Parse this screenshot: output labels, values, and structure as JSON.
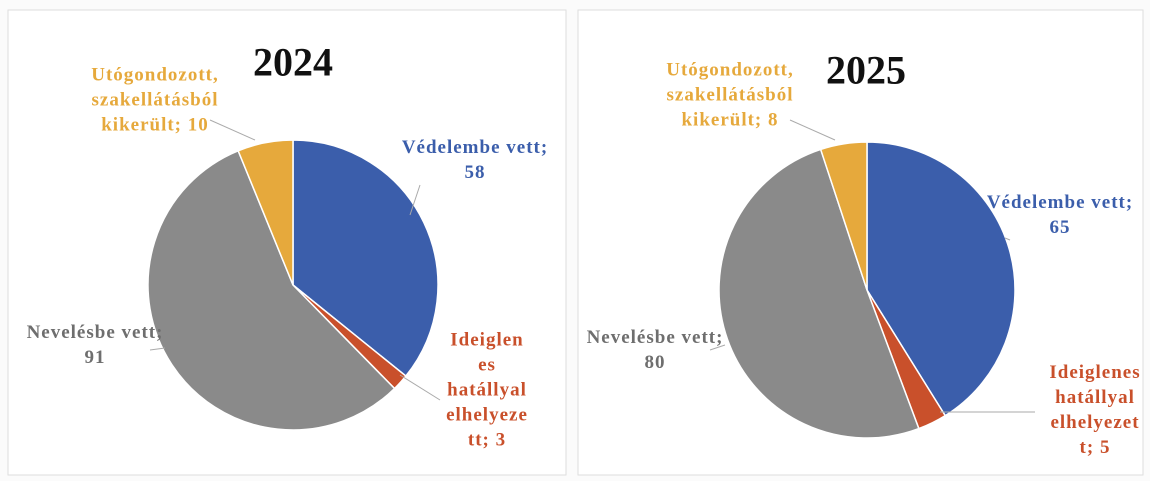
{
  "chart_data": [
    {
      "type": "pie",
      "title": "2024",
      "categories": [
        "Védelembe vett",
        "Ideiglenes hatállyal elhelyezett",
        "Nevelésbe vett",
        "Utógondozott, szakellátásból kikerült"
      ],
      "values": [
        58,
        3,
        91,
        10
      ],
      "value_labels": [
        "Védelembe vett; 58",
        "Ideiglenes hatállyal elhelyezett; 3",
        "Nevelésbe vett; 91",
        "Utógondozott, szakellátásból kikerült; 10"
      ],
      "colors": [
        "#3b5eab",
        "#c9502b",
        "#8a8a8a",
        "#e6a93c"
      ]
    },
    {
      "type": "pie",
      "title": "2025",
      "categories": [
        "Védelembe vett",
        "Ideiglenes hatállyal elhelyezett",
        "Nevelésbe vett",
        "Utógondozott, szakellátásból kikerült"
      ],
      "values": [
        65,
        5,
        80,
        8
      ],
      "value_labels": [
        "Védelembe vett; 65",
        "Ideiglenes hatállyal elhelyezett; 5",
        "Nevelésbe vett; 80",
        "Utógondozott, szakellátásból kikerült; 8"
      ],
      "colors": [
        "#3b5eab",
        "#c9502b",
        "#8a8a8a",
        "#e6a93c"
      ]
    }
  ]
}
